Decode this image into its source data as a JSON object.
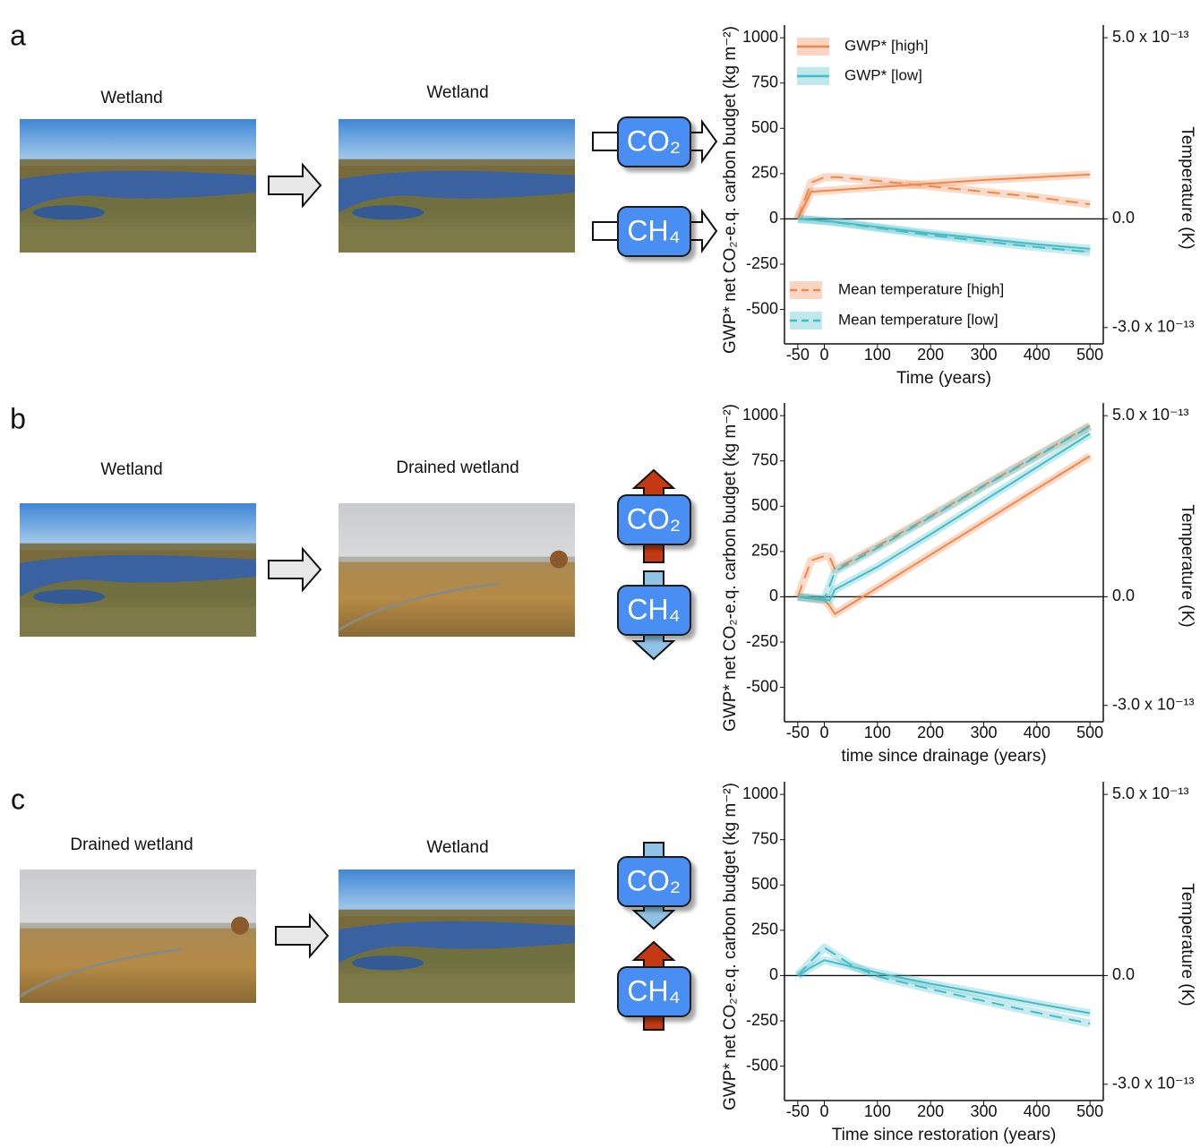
{
  "panels": [
    {
      "letter": "a",
      "image_labels": [
        "Wetland",
        "Wetland"
      ],
      "fluxes": [
        "CO₂",
        "CH₄"
      ]
    },
    {
      "letter": "b",
      "image_labels": [
        "Wetland",
        "Drained wetland"
      ],
      "fluxes": [
        "CO₂",
        "CH₄"
      ]
    },
    {
      "letter": "c",
      "image_labels": [
        "Drained wetland",
        "Wetland"
      ],
      "fluxes": [
        "CO₂",
        "CH₄"
      ]
    }
  ],
  "chart_data": [
    {
      "type": "line",
      "xlabel": "Time (years)",
      "ylabel": "GWP* net CO₂-e.q. carbon budget (kg m⁻²)",
      "y2label": "Temperature (K)",
      "x": [
        -50,
        -25,
        0,
        25,
        100,
        200,
        300,
        400,
        500
      ],
      "xlim": [
        -75,
        525
      ],
      "xticks": [
        -50,
        0,
        100,
        200,
        300,
        400,
        500
      ],
      "ylim": [
        -690,
        1070
      ],
      "yticks": [
        -500,
        -250,
        0,
        250,
        500,
        750,
        1000
      ],
      "y2lim": [
        -3.45e-13,
        5.35e-13
      ],
      "y2ticks": [
        {
          "value": 5e-13,
          "label": "5.0 x 10⁻¹³"
        },
        {
          "value": 0,
          "label": "0.0"
        },
        {
          "value": -3e-13,
          "label": "-3.0 x 10⁻¹³"
        }
      ],
      "series": [
        {
          "name": "GWP* [high]",
          "color": "#f0874c",
          "linestyle": "solid",
          "values": [
            0,
            150,
            155,
            160,
            175,
            195,
            215,
            230,
            245
          ]
        },
        {
          "name": "GWP* [low]",
          "color": "#45bcc6",
          "linestyle": "solid",
          "values": [
            0,
            -5,
            -10,
            -18,
            -45,
            -80,
            -110,
            -140,
            -165
          ]
        },
        {
          "name": "Mean temperature [high]",
          "color": "#f0874c",
          "linestyle": "dashed",
          "axis": "y2",
          "values": [
            0,
            1e-13,
            1.15e-13,
            1.15e-13,
            1.05e-13,
            9e-14,
            7.5e-14,
            6e-14,
            4e-14
          ]
        },
        {
          "name": "Mean temperature [low]",
          "color": "#45bcc6",
          "linestyle": "dashed",
          "axis": "y2",
          "values": [
            0,
            -3e-15,
            -6e-15,
            -1e-14,
            -2.5e-14,
            -4.5e-14,
            -6.2e-14,
            -7.8e-14,
            -9.2e-14
          ]
        }
      ]
    },
    {
      "type": "line",
      "xlabel": "time since drainage (years)",
      "ylabel": "GWP* net CO₂-e.q. carbon budget (kg m⁻²)",
      "y2label": "Temperature (K)",
      "x": [
        -50,
        -25,
        0,
        10,
        20,
        100,
        200,
        300,
        400,
        500
      ],
      "xlim": [
        -75,
        525
      ],
      "xticks": [
        -50,
        0,
        100,
        200,
        300,
        400,
        500
      ],
      "ylim": [
        -690,
        1070
      ],
      "yticks": [
        -500,
        -250,
        0,
        250,
        500,
        750,
        1000
      ],
      "y2lim": [
        -3.45e-13,
        5.35e-13
      ],
      "y2ticks": [
        {
          "value": 5e-13,
          "label": "5.0 x 10⁻¹³"
        },
        {
          "value": 0,
          "label": "0.0"
        },
        {
          "value": -3e-13,
          "label": "-3.0 x 10⁻¹³"
        }
      ],
      "series": [
        {
          "color": "#f0874c",
          "linestyle": "solid",
          "values": [
            0,
            -10,
            -20,
            -50,
            -95,
            50,
            232,
            414,
            596,
            777
          ]
        },
        {
          "color": "#45bcc6",
          "linestyle": "solid",
          "values": [
            0,
            -10,
            -15,
            -20,
            40,
            165,
            345,
            530,
            715,
            900
          ]
        },
        {
          "color": "#f0874c",
          "linestyle": "dashed",
          "axis": "y2",
          "values": [
            0,
            1e-13,
            1.125e-13,
            1.1e-13,
            7.5e-14,
            1.4e-13,
            2.225e-13,
            3.075e-13,
            3.9e-13,
            4.725e-13
          ]
        },
        {
          "color": "#45bcc6",
          "linestyle": "dashed",
          "axis": "y2",
          "values": [
            0,
            -2.5e-15,
            -5e-15,
            3e-14,
            7e-14,
            1.35e-13,
            2.2e-13,
            3.05e-13,
            3.875e-13,
            4.7e-13
          ]
        }
      ]
    },
    {
      "type": "line",
      "xlabel": "Time since restoration (years)",
      "ylabel": "GWP* net CO₂-e.q. carbon budget (kg m⁻²)",
      "y2label": "Temperature (K)",
      "x": [
        -50,
        -25,
        0,
        50,
        100,
        200,
        300,
        400,
        500
      ],
      "xlim": [
        -75,
        525
      ],
      "xticks": [
        -50,
        0,
        100,
        200,
        300,
        400,
        500
      ],
      "ylim": [
        -690,
        1070
      ],
      "yticks": [
        -500,
        -250,
        0,
        250,
        500,
        750,
        1000
      ],
      "y2lim": [
        -3.45e-13,
        5.35e-13
      ],
      "y2ticks": [
        {
          "value": 5e-13,
          "label": "5.0 x 10⁻¹³"
        },
        {
          "value": 0,
          "label": "0.0"
        },
        {
          "value": -3e-13,
          "label": "-3.0 x 10⁻¹³"
        }
      ],
      "series": [
        {
          "color": "#45bcc6",
          "linestyle": "solid",
          "values": [
            0,
            45,
            85,
            50,
            15,
            -45,
            -100,
            -155,
            -208
          ]
        },
        {
          "color": "#45bcc6",
          "linestyle": "dashed",
          "axis": "y2",
          "values": [
            0,
            4e-14,
            7.75e-14,
            3e-14,
            -2.5e-15,
            -3.75e-14,
            -7e-14,
            -1.025e-13,
            -1.325e-13
          ]
        }
      ]
    }
  ]
}
